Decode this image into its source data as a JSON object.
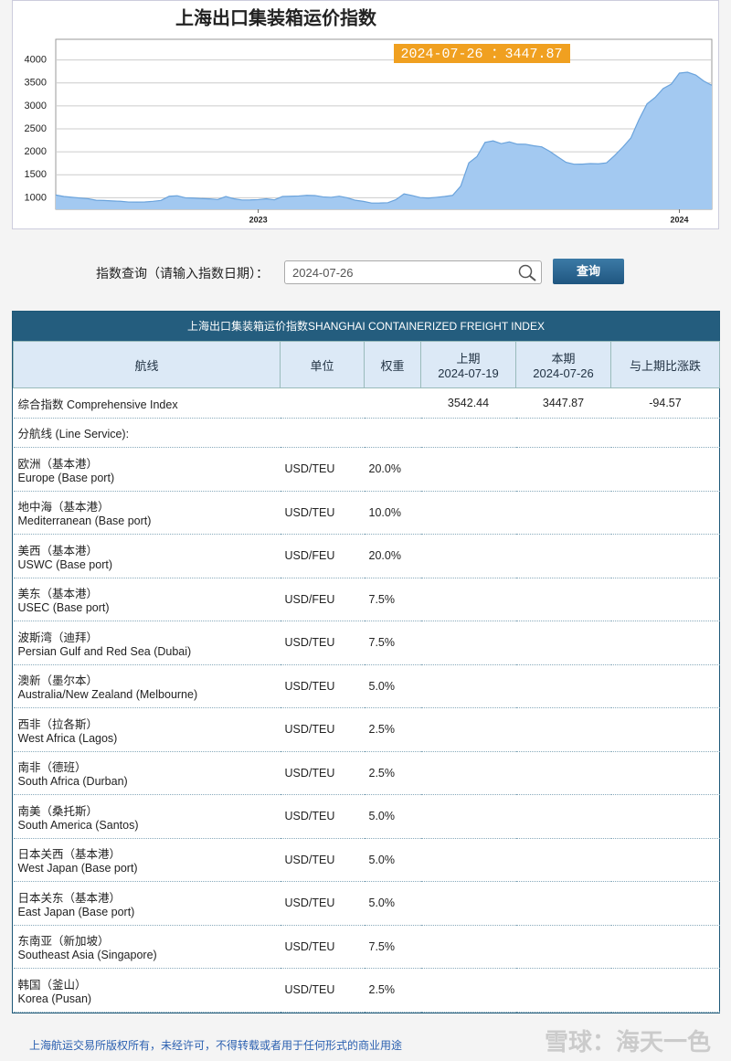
{
  "chart_data": {
    "type": "area",
    "title": "上海出口集装箱运价指数",
    "annotation": "2024-07-26 ：3447.87",
    "categories": [
      null,
      null,
      null,
      null,
      null,
      null,
      null,
      null,
      null,
      null,
      null,
      null,
      null,
      null,
      null,
      null,
      null,
      null,
      null,
      null,
      null,
      null,
      null,
      null,
      null,
      "2023",
      null,
      null,
      null,
      null,
      null,
      null,
      null,
      null,
      null,
      null,
      null,
      null,
      null,
      null,
      null,
      null,
      null,
      null,
      null,
      null,
      null,
      null,
      null,
      null,
      null,
      null,
      null,
      null,
      null,
      null,
      null,
      null,
      null,
      null,
      null,
      null,
      null,
      null,
      null,
      null,
      null,
      null,
      null,
      null,
      null,
      null,
      null,
      null,
      null,
      null,
      null,
      "2024",
      null,
      null,
      null,
      null
    ],
    "values": [
      1061,
      1029,
      1011,
      995,
      980,
      946,
      941,
      931,
      924,
      908,
      906,
      909,
      923,
      943,
      1033,
      1044,
      1000,
      993,
      983,
      977,
      963,
      1028,
      979,
      953,
      954,
      960,
      979,
      955,
      1029,
      1033,
      1040,
      1054,
      1049,
      1020,
      1010,
      1035,
      1000,
      946,
      921,
      886,
      887,
      893,
      959,
      1085,
      1050,
      1005,
      993,
      1010,
      1029,
      1053,
      1254,
      1759,
      1896,
      2206,
      2239,
      2179,
      2218,
      2167,
      2166,
      2132,
      2109,
      2010,
      1888,
      1773,
      1731,
      1732,
      1745,
      1740,
      1761,
      1920,
      2100,
      2300,
      2700,
      3044,
      3184,
      3379,
      3475,
      3714,
      3733,
      3674,
      3542.44,
      3447.87
    ],
    "color": "#a3c9f1",
    "line_color": "#6aa3dc",
    "annotation_color": "#f0a020",
    "ylim": [
      750,
      4450
    ],
    "yticks": [
      1000,
      1500,
      2000,
      2500,
      3000,
      3500,
      4000
    ],
    "grid": true
  },
  "query": {
    "label": "指数查询（请输入指数日期）：",
    "input": "2024-07-26",
    "button": "查询"
  },
  "table": {
    "title": "上海出口集装箱运价指数SHANGHAI CONTAINERIZED FREIGHT INDEX",
    "columns": [
      {
        "title": "航线"
      },
      {
        "title": "单位"
      },
      {
        "title": "权重"
      },
      {
        "title": "上期",
        "date": "2024-07-19"
      },
      {
        "title": "本期",
        "date": "2024-07-26"
      },
      {
        "title": "与上期比涨跌"
      }
    ],
    "composite": {
      "name": "综合指数 Comprehensive Index",
      "previous": 3542.44,
      "current": 3447.87,
      "change": -94.57
    },
    "section": "分航线 (Line Service):",
    "routes": [
      {
        "name_cn": "欧洲（基本港）",
        "name_en": "Europe (Base port)",
        "unit": "USD/TEU",
        "weight": "20.0%"
      },
      {
        "name_cn": "地中海（基本港）",
        "name_en": "Mediterranean (Base port)",
        "unit": "USD/TEU",
        "weight": "10.0%"
      },
      {
        "name_cn": "美西（基本港）",
        "name_en": "USWC (Base port)",
        "unit": "USD/FEU",
        "weight": "20.0%"
      },
      {
        "name_cn": "美东（基本港）",
        "name_en": "USEC (Base port)",
        "unit": "USD/FEU",
        "weight": "7.5%"
      },
      {
        "name_cn": "波斯湾（迪拜）",
        "name_en": "Persian Gulf and Red Sea (Dubai)",
        "unit": "USD/TEU",
        "weight": "7.5%"
      },
      {
        "name_cn": "澳新（墨尔本）",
        "name_en": "Australia/New Zealand (Melbourne)",
        "unit": "USD/TEU",
        "weight": "5.0%"
      },
      {
        "name_cn": "西非（拉各斯）",
        "name_en": "West Africa (Lagos)",
        "unit": "USD/TEU",
        "weight": "2.5%"
      },
      {
        "name_cn": "南非（德班）",
        "name_en": "South Africa (Durban)",
        "unit": "USD/TEU",
        "weight": "2.5%"
      },
      {
        "name_cn": "南美（桑托斯）",
        "name_en": "South America (Santos)",
        "unit": "USD/TEU",
        "weight": "5.0%"
      },
      {
        "name_cn": "日本关西（基本港）",
        "name_en": "West Japan (Base port)",
        "unit": "USD/TEU",
        "weight": "5.0%"
      },
      {
        "name_cn": "日本关东（基本港）",
        "name_en": "East Japan (Base port)",
        "unit": "USD/TEU",
        "weight": "5.0%"
      },
      {
        "name_cn": "东南亚（新加坡）",
        "name_en": "Southeast Asia (Singapore)",
        "unit": "USD/TEU",
        "weight": "7.5%"
      },
      {
        "name_cn": "韩国（釜山）",
        "name_en": "Korea (Pusan)",
        "unit": "USD/TEU",
        "weight": "2.5%"
      }
    ]
  },
  "footer": "上海航运交易所版权所有，未经许可，不得转载或者用于任何形式的商业用途",
  "watermark": "雪球：海天一色"
}
